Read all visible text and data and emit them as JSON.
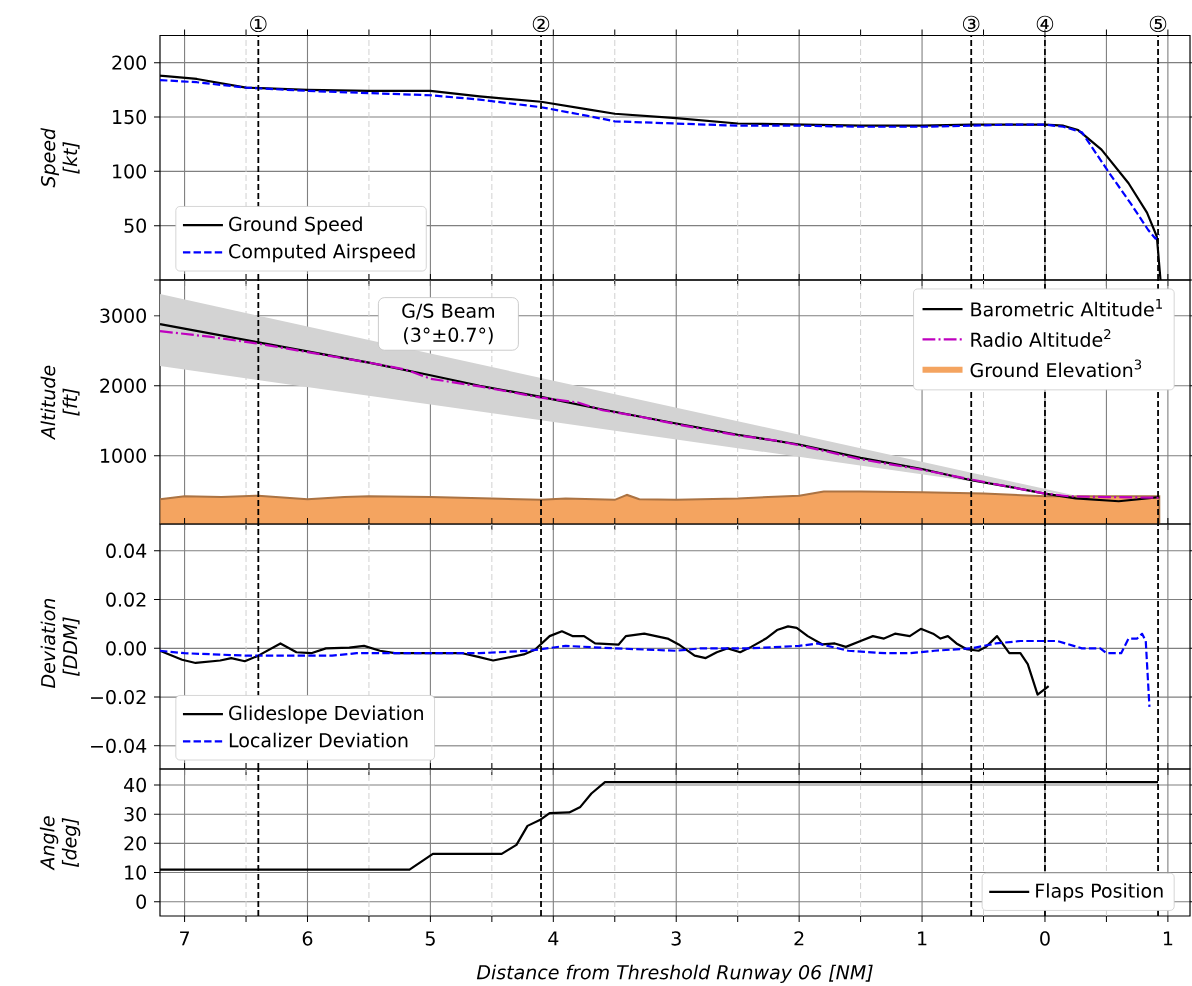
{
  "chart_data": [
    {
      "type": "line",
      "ylabel": "Speed [kt]",
      "xlim": [
        7.2,
        -1.18
      ],
      "ylim": [
        0,
        225
      ],
      "xticks": [
        7,
        {
          "value": 6.5,
          "label": null
        },
        6,
        {
          "value": 5.5,
          "label": null
        },
        5,
        {
          "value": 4.5,
          "label": null
        },
        4,
        {
          "value": 3.5,
          "label": null
        },
        3,
        {
          "value": 2.5,
          "label": null
        },
        2,
        {
          "value": 1.5,
          "label": null
        },
        1,
        {
          "value": 0.5,
          "label": null
        },
        0,
        {
          "value": -0.5,
          "label": null
        },
        {
          "value": -1,
          "label": null
        }
      ],
      "yticks": [
        {
          "value": 0,
          "label": null
        },
        50,
        100,
        150,
        200
      ],
      "tick_labels": "y",
      "grid": true,
      "legend": "bottom left",
      "ref_lines": [
        {
          "axis": "x",
          "value": 6.4,
          "label": "①"
        },
        {
          "axis": "x",
          "value": 4.1,
          "label": "②"
        },
        {
          "axis": "x",
          "value": 0.6,
          "label": "③"
        },
        {
          "axis": "x",
          "value": 0,
          "label": "④"
        },
        {
          "axis": "x",
          "value": -0.92,
          "label": "⑤"
        }
      ],
      "series": [
        {
          "name": "Ground Speed",
          "color": "#000000",
          "line_style": "solid",
          "x": [
            7.2,
            6.9,
            6.5,
            6.0,
            5.5,
            5.0,
            4.6,
            4.1,
            3.72,
            3.5,
            3.0,
            2.5,
            2.0,
            1.5,
            1.0,
            0.6,
            0.3,
            0,
            -0.15,
            -0.27,
            -0.46,
            -0.68,
            -0.83,
            -0.91,
            -0.94
          ],
          "values": [
            188,
            185,
            177,
            175,
            174,
            174,
            169,
            164,
            157,
            153,
            149,
            144,
            143,
            142,
            142,
            143,
            143,
            143,
            142,
            138,
            120,
            89,
            62,
            40,
            0
          ]
        },
        {
          "name": "Computed Airspeed",
          "color": "#0000ff",
          "line_style": "dashed",
          "x": [
            7.2,
            6.9,
            6.5,
            6.0,
            5.5,
            5.0,
            4.6,
            4.1,
            3.72,
            3.5,
            3.0,
            2.5,
            2.0,
            1.5,
            1.0,
            0.6,
            0.3,
            0,
            -0.15,
            -0.3,
            -0.52,
            -0.7,
            -0.84,
            -0.9,
            -0.93
          ],
          "values": [
            184,
            182,
            177,
            174,
            172,
            170,
            166,
            159,
            151,
            146,
            144,
            142,
            142,
            141,
            141,
            142,
            143,
            143,
            141,
            136,
            99,
            70,
            46,
            38,
            42
          ]
        }
      ]
    },
    {
      "type": "line",
      "ylabel": "Altitude [ft]",
      "xlim": [
        7.2,
        -1.18
      ],
      "ylim": [
        25,
        3510
      ],
      "xticks": [
        7,
        {
          "value": 6.5,
          "label": null
        },
        6,
        {
          "value": 5.5,
          "label": null
        },
        5,
        {
          "value": 4.5,
          "label": null
        },
        4,
        {
          "value": 3.5,
          "label": null
        },
        3,
        {
          "value": 2.5,
          "label": null
        },
        2,
        {
          "value": 1.5,
          "label": null
        },
        1,
        {
          "value": 0.5,
          "label": null
        },
        0,
        {
          "value": -0.5,
          "label": null
        },
        {
          "value": -1,
          "label": null
        }
      ],
      "yticks": [
        1000,
        2000,
        3000
      ],
      "tick_labels": "y",
      "grid": true,
      "legend": "top right",
      "annotations": [
        "G/S Beam (3°±0.7°)"
      ],
      "ref_lines": [
        {
          "axis": "x",
          "value": 6.4
        },
        {
          "axis": "x",
          "value": 4.1
        },
        {
          "axis": "x",
          "value": 0.6
        },
        {
          "axis": "x",
          "value": 0
        },
        {
          "axis": "x",
          "value": -0.92
        }
      ],
      "series": [
        {
          "name": "Barometric Altitude$^{1}$",
          "color": "#000000",
          "line_style": "solid",
          "x": [
            7.2,
            6.4,
            5.5,
            5.0,
            4.6,
            4.1,
            3.6,
            3.0,
            2.5,
            2.0,
            1.5,
            1.0,
            0.6,
            0.3,
            0,
            -0.25,
            -0.6,
            -0.93
          ],
          "values": [
            2880,
            2620,
            2330,
            2150,
            2000,
            1840,
            1660,
            1460,
            1300,
            1160,
            970,
            810,
            650,
            560,
            460,
            390,
            350,
            410
          ]
        },
        {
          "name": "Radio Altitude$^{2}$",
          "color": "#bf00bf",
          "line_style": "dashdot",
          "x": [
            7.2,
            6.8,
            6.4,
            6.0,
            5.5,
            5.2,
            5.0,
            4.6,
            4.1,
            3.8,
            3.6,
            3.3,
            3.0,
            2.5,
            2.2,
            2.0,
            1.5,
            1.0,
            0.6,
            0.3,
            0,
            -0.2,
            -0.5,
            -0.93
          ],
          "values": [
            2780,
            2700,
            2600,
            2480,
            2330,
            2230,
            2100,
            1990,
            1830,
            1760,
            1650,
            1560,
            1450,
            1290,
            1220,
            1150,
            950,
            800,
            660,
            560,
            460,
            420,
            410,
            400
          ]
        },
        {
          "name": "Ground Elevation$^{3}$",
          "type": "area",
          "color": "#f4a460",
          "x": [
            7.2,
            7.0,
            6.7,
            6.4,
            6.0,
            5.7,
            5.5,
            5.0,
            4.5,
            4.1,
            3.9,
            3.5,
            3.4,
            3.3,
            3.0,
            2.5,
            2.0,
            1.8,
            1.5,
            1.0,
            0.5,
            0,
            -0.5,
            -0.93
          ],
          "values": [
            380,
            420,
            410,
            430,
            380,
            410,
            420,
            410,
            390,
            370,
            390,
            370,
            440,
            380,
            370,
            390,
            430,
            490,
            490,
            480,
            460,
            420,
            420,
            420
          ]
        },
        {
          "type": "area",
          "color": "#d3d3d3",
          "x": [
            7.2,
            -0.3
          ],
          "values": [
            null,
            null
          ],
          "lower": [
            2280,
            410
          ],
          "upper": [
            3310,
            410
          ]
        }
      ]
    },
    {
      "type": "line",
      "ylabel": "Deviation [DDM]",
      "xlim": [
        7.2,
        -1.18
      ],
      "ylim": [
        -0.0495,
        0.051
      ],
      "xticks": [
        7,
        {
          "value": 6.5,
          "label": null
        },
        6,
        {
          "value": 5.5,
          "label": null
        },
        5,
        {
          "value": 4.5,
          "label": null
        },
        4,
        {
          "value": 3.5,
          "label": null
        },
        3,
        {
          "value": 2.5,
          "label": null
        },
        2,
        {
          "value": 1.5,
          "label": null
        },
        1,
        {
          "value": 0.5,
          "label": null
        },
        0,
        {
          "value": -0.5,
          "label": null
        },
        {
          "value": -1,
          "label": null
        }
      ],
      "yticks": [
        {
          "value": -0.04,
          "label": "−0.04"
        },
        {
          "value": -0.02,
          "label": "−0.02"
        },
        {
          "value": 0,
          "label": "0.00"
        },
        0.02,
        0.04
      ],
      "tick_labels": "y",
      "grid": true,
      "legend": "bottom left",
      "ref_lines": [
        {
          "axis": "x",
          "value": 6.4
        },
        {
          "axis": "x",
          "value": 4.1
        },
        {
          "axis": "x",
          "value": 0.6
        },
        {
          "axis": "x",
          "value": 0
        },
        {
          "axis": "x",
          "value": -0.92
        }
      ],
      "series": [
        {
          "name": "Glideslope Deviation",
          "color": "#000000",
          "line_style": "solid",
          "x": [
            7.2,
            7.02,
            6.91,
            6.71,
            6.62,
            6.51,
            6.4,
            6.22,
            6.09,
            5.97,
            5.85,
            5.66,
            5.54,
            5.41,
            5.29,
            4.74,
            4.61,
            4.49,
            4.24,
            4.15,
            4.03,
            3.93,
            3.84,
            3.75,
            3.66,
            3.47,
            3.41,
            3.26,
            3.07,
            2.98,
            2.85,
            2.76,
            2.67,
            2.58,
            2.48,
            2.39,
            2.27,
            2.18,
            2.09,
            2.02,
            1.93,
            1.81,
            1.71,
            1.62,
            1.5,
            1.4,
            1.31,
            1.22,
            1.1,
            1.01,
            0.91,
            0.85,
            0.79,
            0.72,
            0.64,
            0.54,
            0.48,
            0.39,
            0.29,
            0.2,
            0.14,
            0.06,
            -0.03
          ],
          "values": [
            -0.001,
            -0.0047,
            -0.006,
            -0.005,
            -0.004,
            -0.0053,
            -0.003,
            0.002,
            -0.0016,
            -0.002,
            0,
            0.0003,
            0.001,
            -0.001,
            -0.002,
            -0.002,
            -0.0035,
            -0.005,
            -0.0025,
            -0.0006,
            0.005,
            0.007,
            0.005,
            0.005,
            0.002,
            0.0015,
            0.005,
            0.006,
            0.004,
            0.0016,
            -0.003,
            -0.004,
            -0.0016,
            0,
            -0.0016,
            0.0006,
            0.004,
            0.0075,
            0.009,
            0.0084,
            0.005,
            0.0016,
            0.002,
            0.0006,
            0.003,
            0.005,
            0.004,
            0.006,
            0.005,
            0.008,
            0.006,
            0.004,
            0.005,
            0.002,
            -0.0003,
            -0.001,
            0.0006,
            0.005,
            -0.002,
            -0.002,
            -0.0065,
            -0.019,
            -0.0155
          ]
        },
        {
          "name": "Localizer Deviation",
          "color": "#0000ff",
          "line_style": "dashed",
          "x": [
            7.2,
            7.0,
            6.5,
            5.8,
            5.6,
            4.6,
            4.2,
            3.9,
            3.5,
            3.0,
            2.8,
            2.4,
            2.0,
            1.85,
            1.6,
            1.3,
            1.1,
            0.9,
            0.6,
            0.4,
            0.2,
            -0.1,
            -0.3,
            -0.45,
            -0.5,
            -0.62,
            -0.68,
            -0.75,
            -0.79,
            -0.82,
            -0.85
          ],
          "values": [
            -0.001,
            -0.002,
            -0.003,
            -0.003,
            -0.002,
            -0.002,
            -0.001,
            0.001,
            0,
            -0.001,
            0,
            0,
            0.001,
            0.002,
            -0.001,
            -0.002,
            -0.002,
            -0.001,
            0,
            0.002,
            0.003,
            0.003,
            0,
            0,
            -0.002,
            -0.002,
            0.004,
            0.004,
            0.006,
            0.003,
            -0.024
          ]
        }
      ]
    },
    {
      "type": "line",
      "ylabel": "Angle [deg]",
      "xlabel": "Distance from Threshold Runway 06 [NM]",
      "xlim": [
        7.2,
        -1.18
      ],
      "ylim": [
        -4.9,
        45.5
      ],
      "xticks": [
        7,
        {
          "value": 6.5,
          "label": null
        },
        6,
        {
          "value": 5.5,
          "label": null
        },
        5,
        {
          "value": 4.5,
          "label": null
        },
        4,
        {
          "value": 3.5,
          "label": null
        },
        3,
        {
          "value": 2.5,
          "label": null
        },
        2,
        {
          "value": 1.5,
          "label": null
        },
        1,
        {
          "value": 0.5,
          "label": null
        },
        0,
        {
          "value": -0.5,
          "label": null
        },
        {
          "value": -1,
          "label": "1"
        }
      ],
      "yticks": [
        0,
        10,
        20,
        30,
        40
      ],
      "grid": true,
      "legend": "bottom right",
      "ref_lines": [
        {
          "axis": "x",
          "value": 6.4
        },
        {
          "axis": "x",
          "value": 4.1
        },
        {
          "axis": "x",
          "value": 0.6
        },
        {
          "axis": "x",
          "value": 0
        },
        {
          "axis": "x",
          "value": -0.92
        }
      ],
      "series": [
        {
          "name": "Flaps Position",
          "color": "#000000",
          "line_style": "solid",
          "x": [
            7.2,
            5.17,
            4.98,
            4.42,
            4.3,
            4.21,
            4.11,
            4.03,
            3.87,
            3.78,
            3.69,
            3.58,
            -0.92
          ],
          "values": [
            11,
            11,
            16.4,
            16.4,
            19.5,
            26,
            28,
            30.4,
            30.6,
            32.5,
            37.1,
            41,
            41
          ]
        }
      ]
    }
  ]
}
